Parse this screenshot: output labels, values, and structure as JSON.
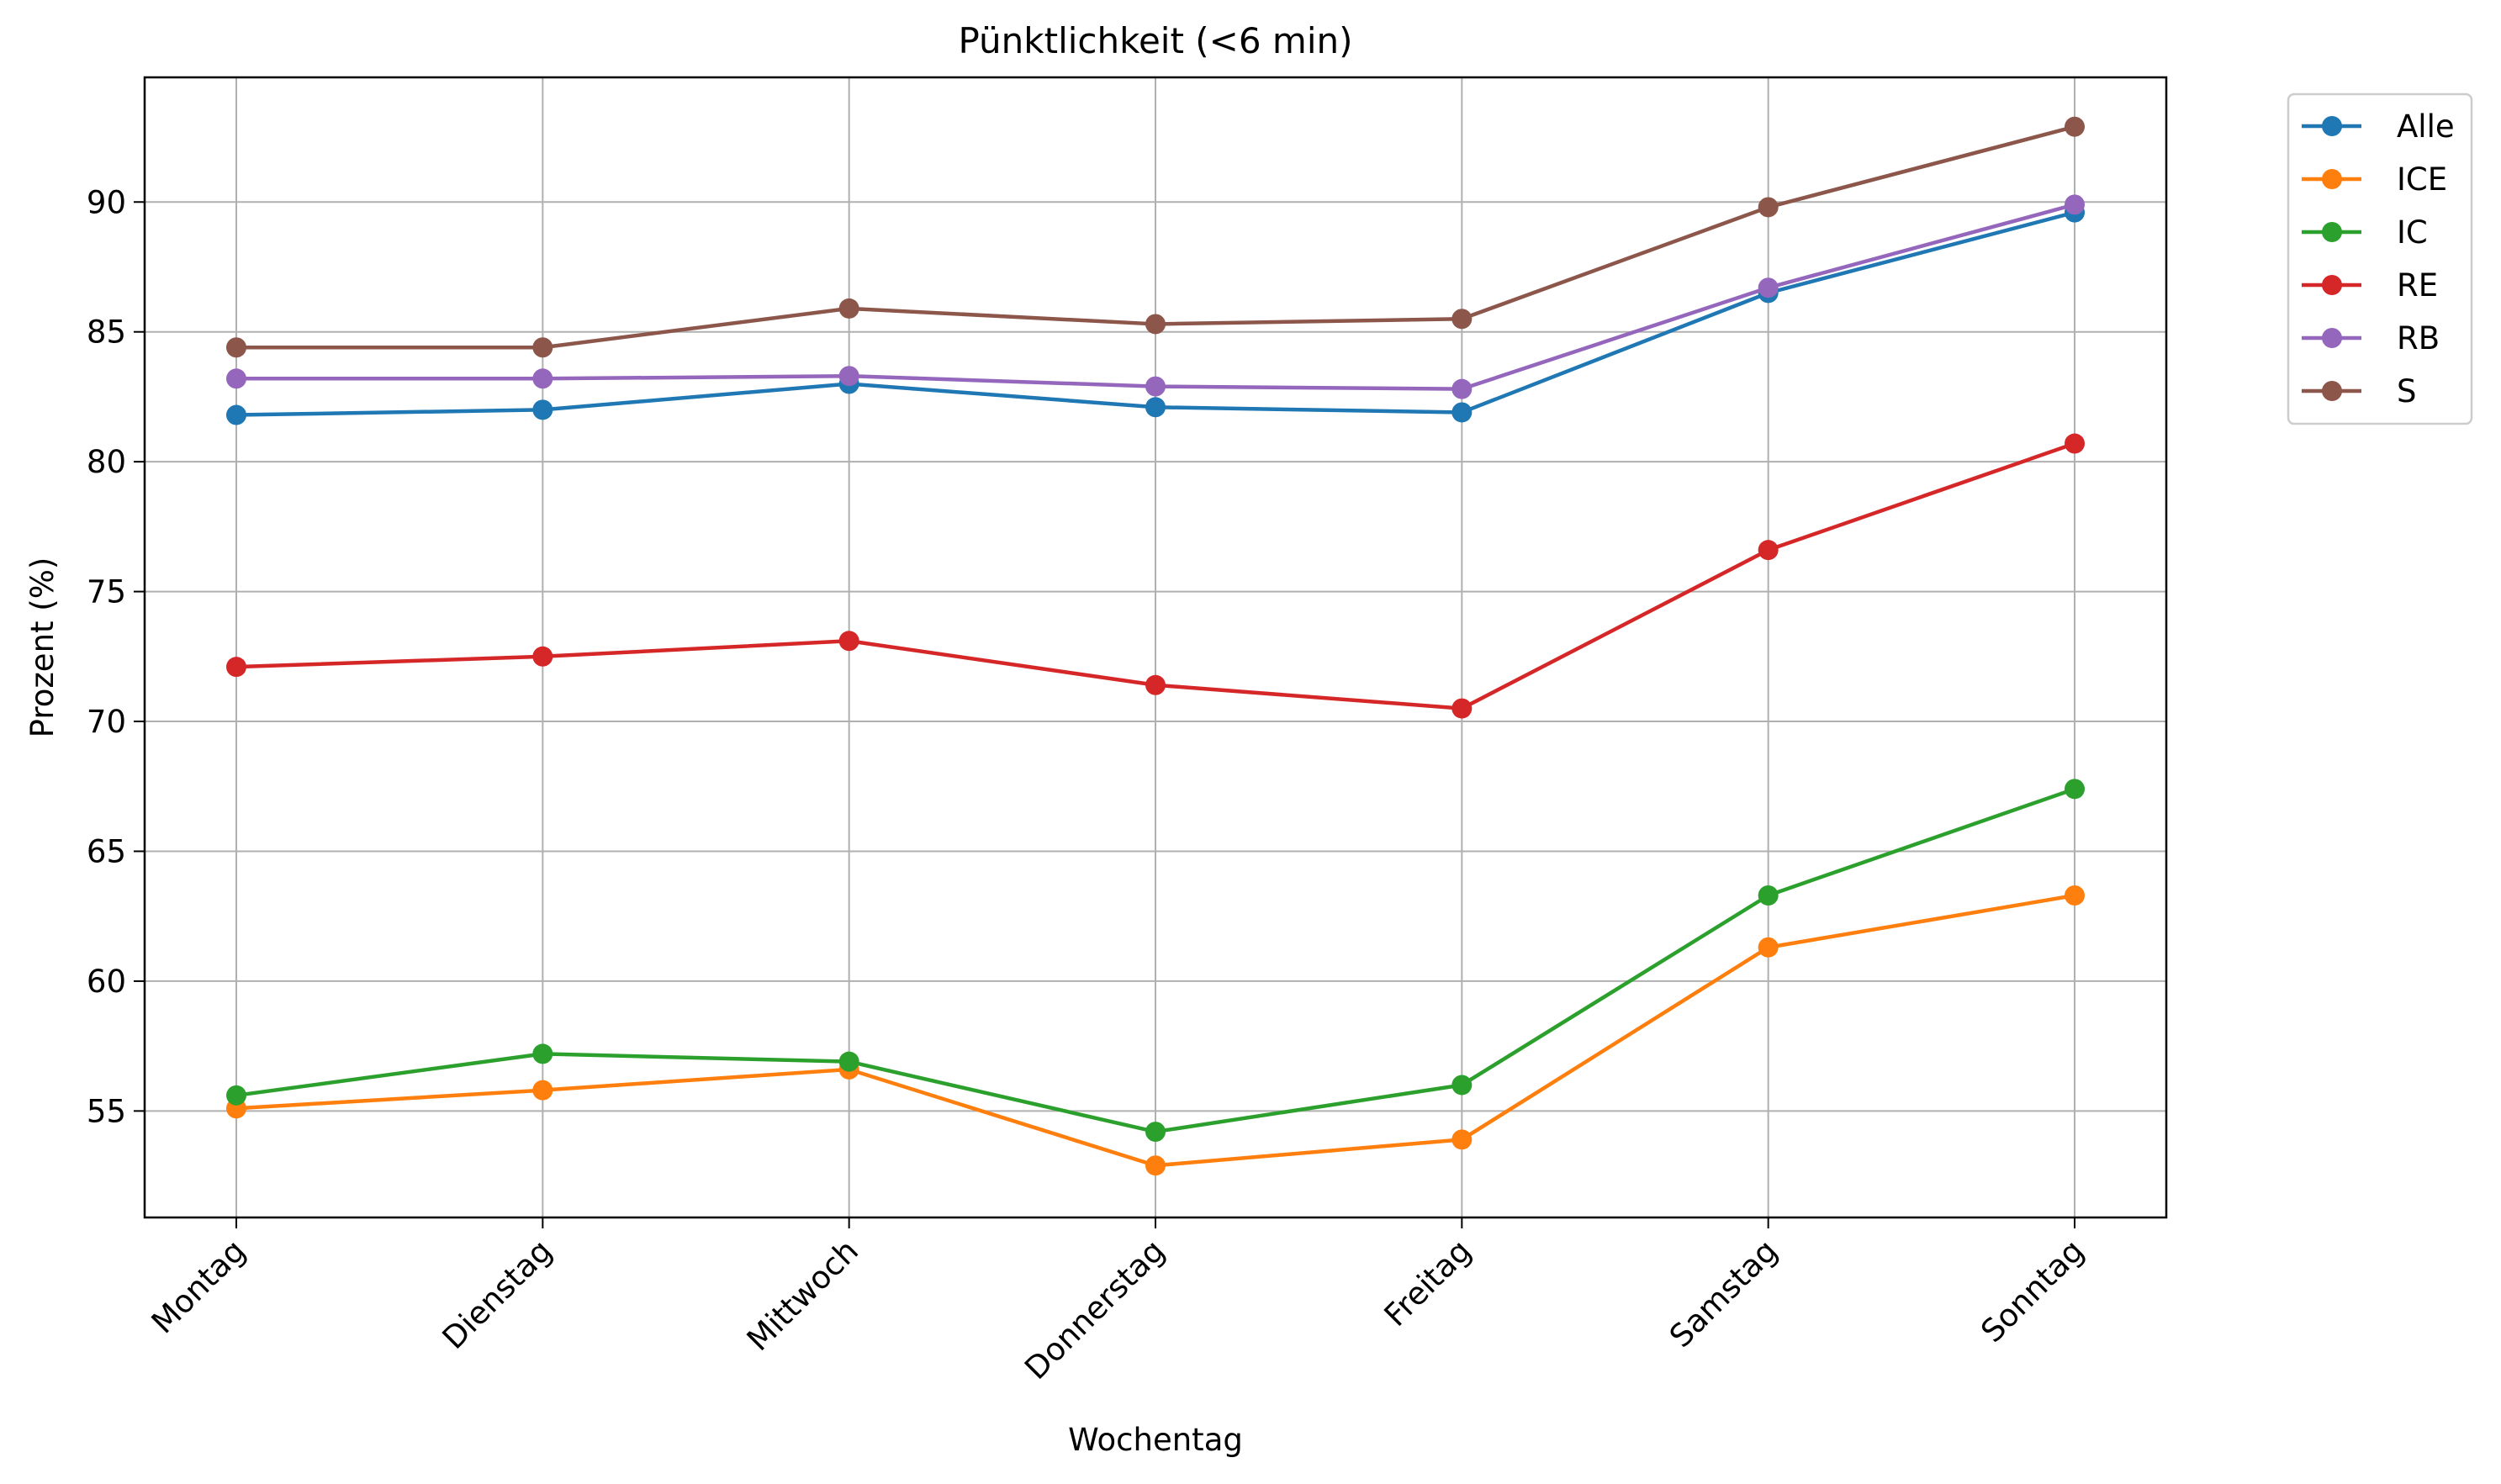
{
  "chart_data": {
    "type": "line",
    "title": "Pünktlichkeit (<6 min)",
    "xlabel": "Wochentag",
    "ylabel": "Prozent (%)",
    "categories": [
      "Montag",
      "Dienstag",
      "Mittwoch",
      "Donnerstag",
      "Freitag",
      "Samstag",
      "Sonntag"
    ],
    "ylim": [
      50.9,
      94.8
    ],
    "yticks": [
      55,
      60,
      65,
      70,
      75,
      80,
      85,
      90
    ],
    "grid": true,
    "legend_position": "outside-top-right",
    "series": [
      {
        "name": "Alle",
        "color": "#1f77b4",
        "values": [
          81.8,
          82.0,
          83.0,
          82.1,
          81.9,
          86.5,
          89.6
        ]
      },
      {
        "name": "ICE",
        "color": "#ff7f0e",
        "values": [
          55.1,
          55.8,
          56.6,
          52.9,
          53.9,
          61.3,
          63.3
        ]
      },
      {
        "name": "IC",
        "color": "#2ca02c",
        "values": [
          55.6,
          57.2,
          56.9,
          54.2,
          56.0,
          63.3,
          67.4
        ]
      },
      {
        "name": "RE",
        "color": "#d62728",
        "values": [
          72.1,
          72.5,
          73.1,
          71.4,
          70.5,
          76.6,
          80.7
        ]
      },
      {
        "name": "RB",
        "color": "#9467bd",
        "values": [
          83.2,
          83.2,
          83.3,
          82.9,
          82.8,
          86.7,
          89.9
        ]
      },
      {
        "name": "S",
        "color": "#8c564b",
        "values": [
          84.4,
          84.4,
          85.9,
          85.3,
          85.5,
          89.8,
          92.9
        ]
      }
    ]
  }
}
